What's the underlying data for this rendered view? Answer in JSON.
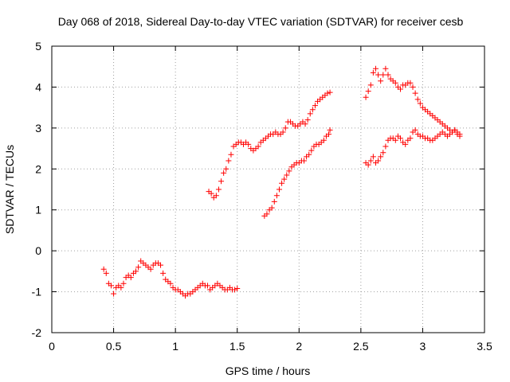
{
  "chart_data": {
    "type": "scatter",
    "title": "Day 068 of 2018, Sidereal Day-to-day VTEC variation (SDTVAR) for receiver cesb",
    "xlabel": "GPS time / hours",
    "ylabel": "SDTVAR / TECUs",
    "xlim": [
      0,
      3.5
    ],
    "ylim": [
      -2,
      5
    ],
    "xticks": [
      "0",
      "0.5",
      "1",
      "1.5",
      "2",
      "2.5",
      "3",
      "3.5"
    ],
    "yticks": [
      "-2",
      "-1",
      "0",
      "1",
      "2",
      "3",
      "4",
      "5"
    ],
    "grid": true,
    "marker": "+",
    "color": "#ff0000",
    "series": [
      {
        "x": [
          0.42,
          0.44,
          0.46,
          0.48,
          0.5,
          0.52,
          0.54,
          0.56,
          0.58,
          0.6,
          0.62,
          0.64,
          0.66,
          0.68,
          0.7,
          0.72,
          0.74,
          0.76,
          0.78,
          0.8,
          0.82,
          0.84,
          0.86,
          0.88,
          0.9,
          0.92,
          0.94,
          0.96,
          0.98,
          1.0,
          1.02,
          1.04,
          1.06,
          1.08,
          1.1,
          1.12,
          1.14,
          1.16,
          1.18,
          1.2,
          1.22,
          1.24,
          1.26,
          1.28,
          1.3,
          1.32,
          1.34,
          1.36,
          1.38,
          1.4,
          1.42,
          1.44,
          1.46,
          1.48,
          1.5
        ],
        "y": [
          -0.45,
          -0.55,
          -0.8,
          -0.85,
          -1.05,
          -0.9,
          -0.85,
          -0.9,
          -0.8,
          -0.65,
          -0.6,
          -0.65,
          -0.55,
          -0.5,
          -0.4,
          -0.25,
          -0.3,
          -0.35,
          -0.4,
          -0.45,
          -0.35,
          -0.3,
          -0.3,
          -0.35,
          -0.55,
          -0.7,
          -0.75,
          -0.8,
          -0.9,
          -0.95,
          -0.95,
          -1.0,
          -1.05,
          -1.1,
          -1.05,
          -1.05,
          -1.0,
          -0.95,
          -0.9,
          -0.85,
          -0.8,
          -0.85,
          -0.85,
          -0.95,
          -0.9,
          -0.85,
          -0.8,
          -0.85,
          -0.9,
          -0.95,
          -0.95,
          -0.9,
          -0.95,
          -0.95,
          -0.92
        ]
      },
      {
        "x": [
          1.27,
          1.29,
          1.31,
          1.33,
          1.35,
          1.37,
          1.39,
          1.41,
          1.43,
          1.45,
          1.47,
          1.49,
          1.51,
          1.53,
          1.55,
          1.57,
          1.59,
          1.61,
          1.63,
          1.65,
          1.67,
          1.69,
          1.71,
          1.73,
          1.75,
          1.77,
          1.79,
          1.81,
          1.83,
          1.85,
          1.87,
          1.89,
          1.91,
          1.93,
          1.95,
          1.97,
          1.99,
          2.01,
          2.03,
          2.05,
          2.07,
          2.09,
          2.11,
          2.13,
          2.15,
          2.17,
          2.19,
          2.21,
          2.23,
          2.25
        ],
        "y": [
          1.45,
          1.4,
          1.3,
          1.35,
          1.5,
          1.7,
          1.9,
          2.0,
          2.2,
          2.35,
          2.55,
          2.6,
          2.65,
          2.65,
          2.6,
          2.65,
          2.6,
          2.5,
          2.45,
          2.5,
          2.55,
          2.65,
          2.7,
          2.75,
          2.8,
          2.85,
          2.85,
          2.9,
          2.85,
          2.85,
          2.9,
          3.0,
          3.15,
          3.15,
          3.1,
          3.05,
          3.05,
          3.1,
          3.15,
          3.1,
          3.2,
          3.35,
          3.45,
          3.55,
          3.65,
          3.7,
          3.75,
          3.8,
          3.85,
          3.87
        ]
      },
      {
        "x": [
          1.72,
          1.74,
          1.76,
          1.78,
          1.8,
          1.82,
          1.84,
          1.86,
          1.88,
          1.9,
          1.92,
          1.94,
          1.96,
          1.98,
          2.0,
          2.02,
          2.04,
          2.06,
          2.08,
          2.1,
          2.12,
          2.14,
          2.16,
          2.18,
          2.2,
          2.22,
          2.24,
          2.25
        ],
        "y": [
          0.85,
          0.9,
          1.0,
          1.05,
          1.2,
          1.35,
          1.5,
          1.65,
          1.75,
          1.85,
          1.95,
          2.05,
          2.1,
          2.15,
          2.15,
          2.2,
          2.2,
          2.3,
          2.35,
          2.45,
          2.55,
          2.6,
          2.6,
          2.65,
          2.7,
          2.8,
          2.85,
          2.95
        ]
      },
      {
        "x": [
          2.54,
          2.56,
          2.58,
          2.6,
          2.62,
          2.64,
          2.66,
          2.68,
          2.7,
          2.72,
          2.74,
          2.76,
          2.78,
          2.8,
          2.82,
          2.84,
          2.86,
          2.88,
          2.9,
          2.92,
          2.94,
          2.96,
          2.98,
          3.0,
          3.02,
          3.04,
          3.06,
          3.08,
          3.1,
          3.12,
          3.14,
          3.16,
          3.18,
          3.2,
          3.22,
          3.24,
          3.26,
          3.28,
          3.3
        ],
        "y": [
          3.75,
          3.9,
          4.05,
          4.35,
          4.45,
          4.3,
          4.15,
          4.3,
          4.45,
          4.3,
          4.2,
          4.15,
          4.1,
          4.0,
          3.95,
          4.05,
          4.05,
          4.1,
          4.1,
          4.0,
          3.85,
          3.7,
          3.6,
          3.5,
          3.45,
          3.4,
          3.35,
          3.3,
          3.25,
          3.2,
          3.15,
          3.1,
          3.05,
          3.0,
          2.95,
          2.9,
          2.95,
          2.9,
          2.85
        ]
      },
      {
        "x": [
          2.54,
          2.56,
          2.58,
          2.6,
          2.62,
          2.64,
          2.66,
          2.68,
          2.7,
          2.72,
          2.74,
          2.76,
          2.78,
          2.8,
          2.82,
          2.84,
          2.86,
          2.88,
          2.9,
          2.92,
          2.94,
          2.96,
          2.98,
          3.0,
          3.02,
          3.04,
          3.06,
          3.08,
          3.1,
          3.12,
          3.14,
          3.16,
          3.18,
          3.2,
          3.22,
          3.24,
          3.26,
          3.28,
          3.3
        ],
        "y": [
          2.15,
          2.1,
          2.2,
          2.3,
          2.15,
          2.2,
          2.3,
          2.4,
          2.55,
          2.7,
          2.75,
          2.75,
          2.7,
          2.8,
          2.75,
          2.65,
          2.6,
          2.7,
          2.75,
          2.9,
          2.95,
          2.85,
          2.8,
          2.8,
          2.75,
          2.75,
          2.7,
          2.7,
          2.75,
          2.8,
          2.85,
          2.9,
          2.85,
          2.8,
          2.85,
          2.9,
          2.95,
          2.85,
          2.8
        ]
      }
    ]
  }
}
